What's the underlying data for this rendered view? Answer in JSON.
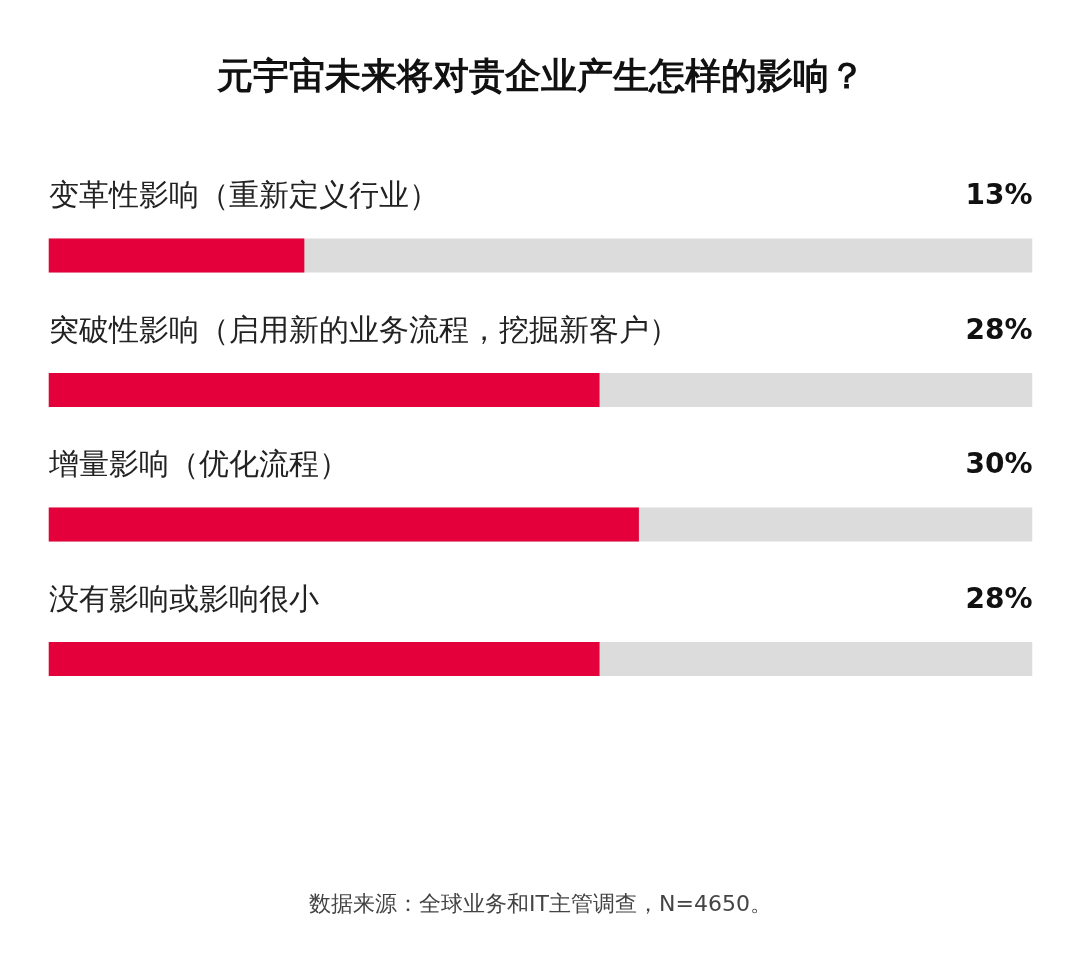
{
  "chart_data": {
    "type": "bar",
    "orientation": "horizontal",
    "title": "元宇宙未来将对贵企业产生怎样的影响？",
    "categories": [
      "变革性影响（重新定义行业）",
      "突破性影响（启用新的业务流程，挖掘新客户）",
      "增量影响（优化流程）",
      "没有影响或影响很小"
    ],
    "values": [
      13,
      28,
      30,
      28
    ],
    "value_labels": [
      "13%",
      "28%",
      "30%",
      "28%"
    ],
    "color": "#e4003a",
    "xlim": [
      0,
      50
    ],
    "annotations": [
      "数据来源：全球业务和IT主管调查，N=4650。"
    ]
  }
}
